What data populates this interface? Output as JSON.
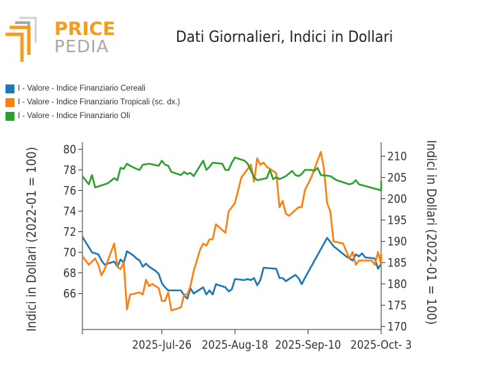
{
  "brand": {
    "top": "PRICE",
    "bottom": "PEDIA"
  },
  "colors": {
    "cereali": "#1f77b4",
    "tropicali": "#ff7f0e",
    "oli": "#2ca02c",
    "brand_orange": "#f39c1f",
    "brand_gray": "#a8a8a8"
  },
  "chart_data": {
    "type": "line",
    "title": "Dati Giornalieri, Indici in Dollari",
    "ylabel": "Indici in Dollari (2022-01 = 100)",
    "y2label": "Indici in Dollari (2022-01 = 100)",
    "ylim": [
      62.5,
      80.7
    ],
    "y2lim": [
      169.3,
      213.3
    ],
    "yticks": [
      66,
      68,
      70,
      72,
      74,
      76,
      78,
      80
    ],
    "y2ticks": [
      170,
      175,
      180,
      185,
      190,
      195,
      200,
      205,
      210
    ],
    "xlim": [
      "2025-07-01",
      "2025-10-03"
    ],
    "xticks": [
      "2025-Jul-26",
      "2025-Aug-18",
      "2025-Sep-10",
      "2025-Oct- 3"
    ],
    "grid": false,
    "legend_position": "top-left",
    "series": [
      {
        "name": "I - Valore - Indice Finanziario Cereali",
        "axis": "left",
        "color": "#1f77b4",
        "points": [
          [
            "2025-07-01",
            71.5
          ],
          [
            "2025-07-02",
            71.0
          ],
          [
            "2025-07-03",
            70.5
          ],
          [
            "2025-07-04",
            70.0
          ],
          [
            "2025-07-06",
            69.8
          ],
          [
            "2025-07-07",
            69.2
          ],
          [
            "2025-07-08",
            68.8
          ],
          [
            "2025-07-10",
            69.0
          ],
          [
            "2025-07-11",
            69.1
          ],
          [
            "2025-07-12",
            68.6
          ],
          [
            "2025-07-13",
            69.3
          ],
          [
            "2025-07-14",
            69.0
          ],
          [
            "2025-07-15",
            70.1
          ],
          [
            "2025-07-17",
            69.7
          ],
          [
            "2025-07-18",
            69.4
          ],
          [
            "2025-07-19",
            69.2
          ],
          [
            "2025-07-20",
            68.6
          ],
          [
            "2025-07-21",
            68.9
          ],
          [
            "2025-07-22",
            68.6
          ],
          [
            "2025-07-24",
            68.2
          ],
          [
            "2025-07-25",
            67.9
          ],
          [
            "2025-07-26",
            67.0
          ],
          [
            "2025-07-27",
            66.6
          ],
          [
            "2025-07-28",
            66.3
          ],
          [
            "2025-07-31",
            66.3
          ],
          [
            "2025-08-01",
            66.3
          ],
          [
            "2025-08-02",
            65.8
          ],
          [
            "2025-08-03",
            65.5
          ],
          [
            "2025-08-04",
            66.5
          ],
          [
            "2025-08-05",
            66.0
          ],
          [
            "2025-08-08",
            66.6
          ],
          [
            "2025-08-09",
            65.9
          ],
          [
            "2025-08-10",
            66.3
          ],
          [
            "2025-08-11",
            65.9
          ],
          [
            "2025-08-12",
            66.9
          ],
          [
            "2025-08-15",
            66.6
          ],
          [
            "2025-08-16",
            66.2
          ],
          [
            "2025-08-17",
            66.4
          ],
          [
            "2025-08-18",
            67.4
          ],
          [
            "2025-08-21",
            67.3
          ],
          [
            "2025-08-22",
            67.4
          ],
          [
            "2025-08-23",
            67.3
          ],
          [
            "2025-08-24",
            67.5
          ],
          [
            "2025-08-25",
            66.8
          ],
          [
            "2025-08-26",
            67.3
          ],
          [
            "2025-08-27",
            68.5
          ],
          [
            "2025-08-31",
            68.4
          ],
          [
            "2025-09-01",
            67.5
          ],
          [
            "2025-09-02",
            67.5
          ],
          [
            "2025-09-03",
            67.2
          ],
          [
            "2025-09-05",
            67.6
          ],
          [
            "2025-09-06",
            67.8
          ],
          [
            "2025-09-07",
            67.5
          ],
          [
            "2025-09-08",
            66.9
          ],
          [
            "2025-09-09",
            67.5
          ],
          [
            "2025-09-14",
            70.3
          ],
          [
            "2025-09-16",
            71.4
          ],
          [
            "2025-09-18",
            70.6
          ],
          [
            "2025-09-20",
            70.1
          ],
          [
            "2025-09-22",
            69.6
          ],
          [
            "2025-09-24",
            69.2
          ],
          [
            "2025-09-25",
            69.8
          ],
          [
            "2025-09-26",
            69.6
          ],
          [
            "2025-09-27",
            69.9
          ],
          [
            "2025-09-28",
            69.5
          ],
          [
            "2025-10-01",
            69.4
          ],
          [
            "2025-10-02",
            68.4
          ],
          [
            "2025-10-03",
            68.9
          ],
          [
            "2025-10-04",
            69.8
          ],
          [
            "2025-10-05",
            69.0
          ]
        ]
      },
      {
        "name": "I - Valore - Indice Finanziario Tropicali (sc. dx.)",
        "axis": "right",
        "color": "#ff7f0e",
        "points": [
          [
            "2025-07-01",
            186.5
          ],
          [
            "2025-07-03",
            184.5
          ],
          [
            "2025-07-05",
            186.0
          ],
          [
            "2025-07-06",
            184.5
          ],
          [
            "2025-07-07",
            182.0
          ],
          [
            "2025-07-08",
            183.5
          ],
          [
            "2025-07-11",
            189.5
          ],
          [
            "2025-07-12",
            184.0
          ],
          [
            "2025-07-13",
            183.5
          ],
          [
            "2025-07-14",
            185.0
          ],
          [
            "2025-07-15",
            174.0
          ],
          [
            "2025-07-16",
            177.5
          ],
          [
            "2025-07-19",
            178.0
          ],
          [
            "2025-07-20",
            177.5
          ],
          [
            "2025-07-21",
            181.0
          ],
          [
            "2025-07-22",
            179.5
          ],
          [
            "2025-07-23",
            180.0
          ],
          [
            "2025-07-24",
            179.5
          ],
          [
            "2025-07-25",
            179.0
          ],
          [
            "2025-07-26",
            176.0
          ],
          [
            "2025-07-27",
            176.0
          ],
          [
            "2025-07-28",
            178.0
          ],
          [
            "2025-07-29",
            173.8
          ],
          [
            "2025-07-30",
            174.0
          ],
          [
            "2025-08-01",
            174.5
          ],
          [
            "2025-08-02",
            177.5
          ],
          [
            "2025-08-03",
            177.5
          ],
          [
            "2025-08-04",
            179.5
          ],
          [
            "2025-08-05",
            183.0
          ],
          [
            "2025-08-07",
            188.0
          ],
          [
            "2025-08-08",
            189.5
          ],
          [
            "2025-08-09",
            189.0
          ],
          [
            "2025-08-10",
            190.5
          ],
          [
            "2025-08-11",
            190.5
          ],
          [
            "2025-08-12",
            194.0
          ],
          [
            "2025-08-15",
            192.0
          ],
          [
            "2025-08-16",
            197.0
          ],
          [
            "2025-08-18",
            199.0
          ],
          [
            "2025-08-20",
            205.0
          ],
          [
            "2025-08-23",
            208.0
          ],
          [
            "2025-08-24",
            204.0
          ],
          [
            "2025-08-25",
            209.5
          ],
          [
            "2025-08-26",
            208.0
          ],
          [
            "2025-08-27",
            208.5
          ],
          [
            "2025-08-28",
            207.5
          ],
          [
            "2025-08-31",
            206.0
          ],
          [
            "2025-09-01",
            198.0
          ],
          [
            "2025-09-02",
            199.5
          ],
          [
            "2025-09-03",
            196.5
          ],
          [
            "2025-09-04",
            196.0
          ],
          [
            "2025-09-07",
            198.0
          ],
          [
            "2025-09-08",
            198.0
          ],
          [
            "2025-09-09",
            202.0
          ],
          [
            "2025-09-11",
            205.0
          ],
          [
            "2025-09-12",
            207.0
          ],
          [
            "2025-09-14",
            211.0
          ],
          [
            "2025-09-15",
            207.0
          ],
          [
            "2025-09-16",
            199.0
          ],
          [
            "2025-09-17",
            197.0
          ],
          [
            "2025-09-18",
            190.0
          ],
          [
            "2025-09-21",
            189.5
          ],
          [
            "2025-09-23",
            186.0
          ],
          [
            "2025-09-24",
            187.5
          ],
          [
            "2025-09-25",
            184.5
          ],
          [
            "2025-09-26",
            185.5
          ],
          [
            "2025-09-27",
            185.5
          ],
          [
            "2025-09-30",
            185.5
          ],
          [
            "2025-10-01",
            184.5
          ],
          [
            "2025-10-02",
            187.5
          ],
          [
            "2025-10-03",
            184.5
          ],
          [
            "2025-10-04",
            187.0
          ],
          [
            "2025-10-05",
            184.5
          ]
        ]
      },
      {
        "name": "I - Valore - Indice Finanziario Oli",
        "axis": "left",
        "color": "#2ca02c",
        "points": [
          [
            "2025-07-01",
            77.4
          ],
          [
            "2025-07-03",
            76.6
          ],
          [
            "2025-07-04",
            77.5
          ],
          [
            "2025-07-05",
            76.3
          ],
          [
            "2025-07-07",
            76.5
          ],
          [
            "2025-07-09",
            76.7
          ],
          [
            "2025-07-11",
            77.2
          ],
          [
            "2025-07-12",
            77.0
          ],
          [
            "2025-07-13",
            78.2
          ],
          [
            "2025-07-14",
            78.1
          ],
          [
            "2025-07-15",
            78.6
          ],
          [
            "2025-07-16",
            78.4
          ],
          [
            "2025-07-18",
            78.1
          ],
          [
            "2025-07-19",
            78.0
          ],
          [
            "2025-07-20",
            78.5
          ],
          [
            "2025-07-22",
            78.6
          ],
          [
            "2025-07-25",
            78.4
          ],
          [
            "2025-07-26",
            78.9
          ],
          [
            "2025-07-27",
            78.5
          ],
          [
            "2025-07-28",
            78.4
          ],
          [
            "2025-07-29",
            77.8
          ],
          [
            "2025-07-31",
            77.6
          ],
          [
            "2025-08-01",
            77.5
          ],
          [
            "2025-08-02",
            77.8
          ],
          [
            "2025-08-03",
            77.6
          ],
          [
            "2025-08-04",
            77.7
          ],
          [
            "2025-08-05",
            77.4
          ],
          [
            "2025-08-08",
            78.9
          ],
          [
            "2025-08-09",
            78.0
          ],
          [
            "2025-08-10",
            78.3
          ],
          [
            "2025-08-11",
            78.7
          ],
          [
            "2025-08-14",
            78.6
          ],
          [
            "2025-08-15",
            78.0
          ],
          [
            "2025-08-16",
            78.0
          ],
          [
            "2025-08-17",
            78.7
          ],
          [
            "2025-08-18",
            79.2
          ],
          [
            "2025-08-21",
            78.9
          ],
          [
            "2025-08-22",
            78.6
          ],
          [
            "2025-08-24",
            77.3
          ],
          [
            "2025-08-25",
            77.0
          ],
          [
            "2025-08-28",
            77.2
          ],
          [
            "2025-08-29",
            78.0
          ],
          [
            "2025-08-30",
            77.1
          ],
          [
            "2025-08-31",
            77.3
          ],
          [
            "2025-09-01",
            77.1
          ],
          [
            "2025-09-03",
            77.4
          ],
          [
            "2025-09-05",
            77.9
          ],
          [
            "2025-09-06",
            77.5
          ],
          [
            "2025-09-07",
            77.4
          ],
          [
            "2025-09-08",
            77.6
          ],
          [
            "2025-09-09",
            78.0
          ],
          [
            "2025-09-11",
            78.0
          ],
          [
            "2025-09-12",
            77.9
          ],
          [
            "2025-09-13",
            78.2
          ],
          [
            "2025-09-14",
            77.5
          ],
          [
            "2025-09-17",
            77.4
          ],
          [
            "2025-09-19",
            77.0
          ],
          [
            "2025-09-23",
            76.6
          ],
          [
            "2025-09-24",
            76.7
          ],
          [
            "2025-09-25",
            77.0
          ],
          [
            "2025-09-26",
            76.6
          ],
          [
            "2025-10-02",
            76.1
          ],
          [
            "2025-10-03",
            76.0
          ],
          [
            "2025-10-04",
            76.9
          ],
          [
            "2025-10-05",
            76.2
          ]
        ]
      }
    ]
  }
}
